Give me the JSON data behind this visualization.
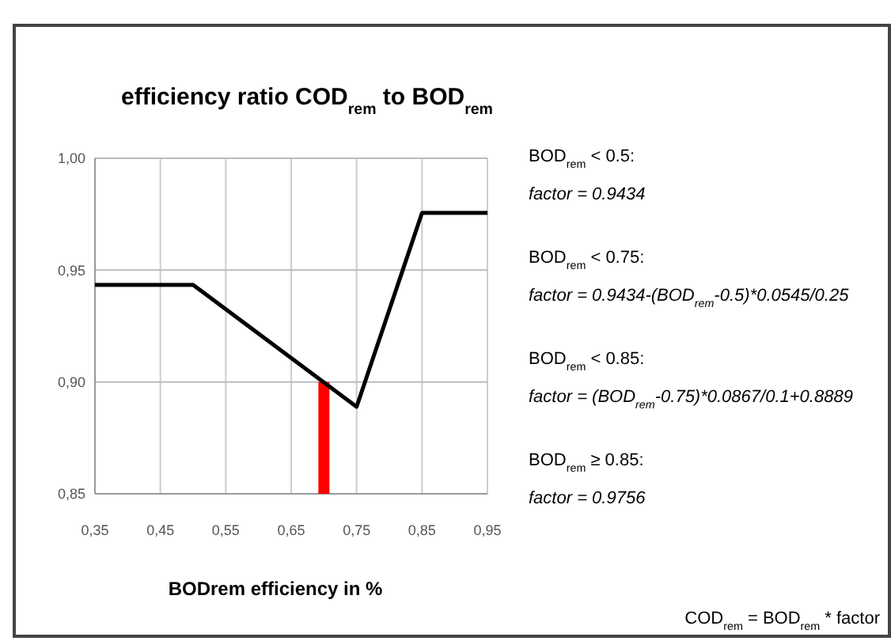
{
  "chart_data": {
    "type": "line",
    "title": "efficiency ratio COD$_{rem}$ to BOD$_{rem}$",
    "xlabel": "BODrem efficiency in %",
    "xlim": [
      0.35,
      0.95
    ],
    "xticks": [
      {
        "value": 0.35,
        "label": "0,35"
      },
      {
        "value": 0.45,
        "label": "0,45"
      },
      {
        "value": 0.55,
        "label": "0,55"
      },
      {
        "value": 0.65,
        "label": "0,65"
      },
      {
        "value": 0.75,
        "label": "0,75"
      },
      {
        "value": 0.85,
        "label": "0,85"
      },
      {
        "value": 0.95,
        "label": "0,95"
      }
    ],
    "ylim": [
      0.85,
      1.0
    ],
    "yticks": [
      {
        "value": 0.85,
        "label": "0,85"
      },
      {
        "value": 0.9,
        "label": "0,90"
      },
      {
        "value": 0.95,
        "label": "0,95"
      },
      {
        "value": 1.0,
        "label": "1,00"
      }
    ],
    "grid": true,
    "series": [
      {
        "color": "#000000",
        "x": [
          0.35,
          0.5,
          0.75,
          0.85,
          0.95
        ],
        "values": [
          0.9434,
          0.9434,
          0.8889,
          0.9756,
          0.9756
        ]
      },
      {
        "type": "bar",
        "color": "#ff0000",
        "x": [
          0.7
        ],
        "values": [
          0.9
        ]
      }
    ],
    "annotations": [
      "BOD$_{rem}$ < 0.5:",
      "factor = 0.9434",
      "BOD$_{rem}$ < 0.75:",
      "factor = 0.9434-(BOD$_{rem}$-0.5)*0.0545/0.25",
      "BOD$_{rem}$ < 0.85:",
      "factor = (BOD$_{rem}$-0.75)*0.0867/0.1+0.8889",
      "BOD$_{rem}$ ≥ 0.85:",
      "factor = 0.9756",
      "COD$_{rem}$ = BOD$_{rem}$ * factor"
    ]
  }
}
